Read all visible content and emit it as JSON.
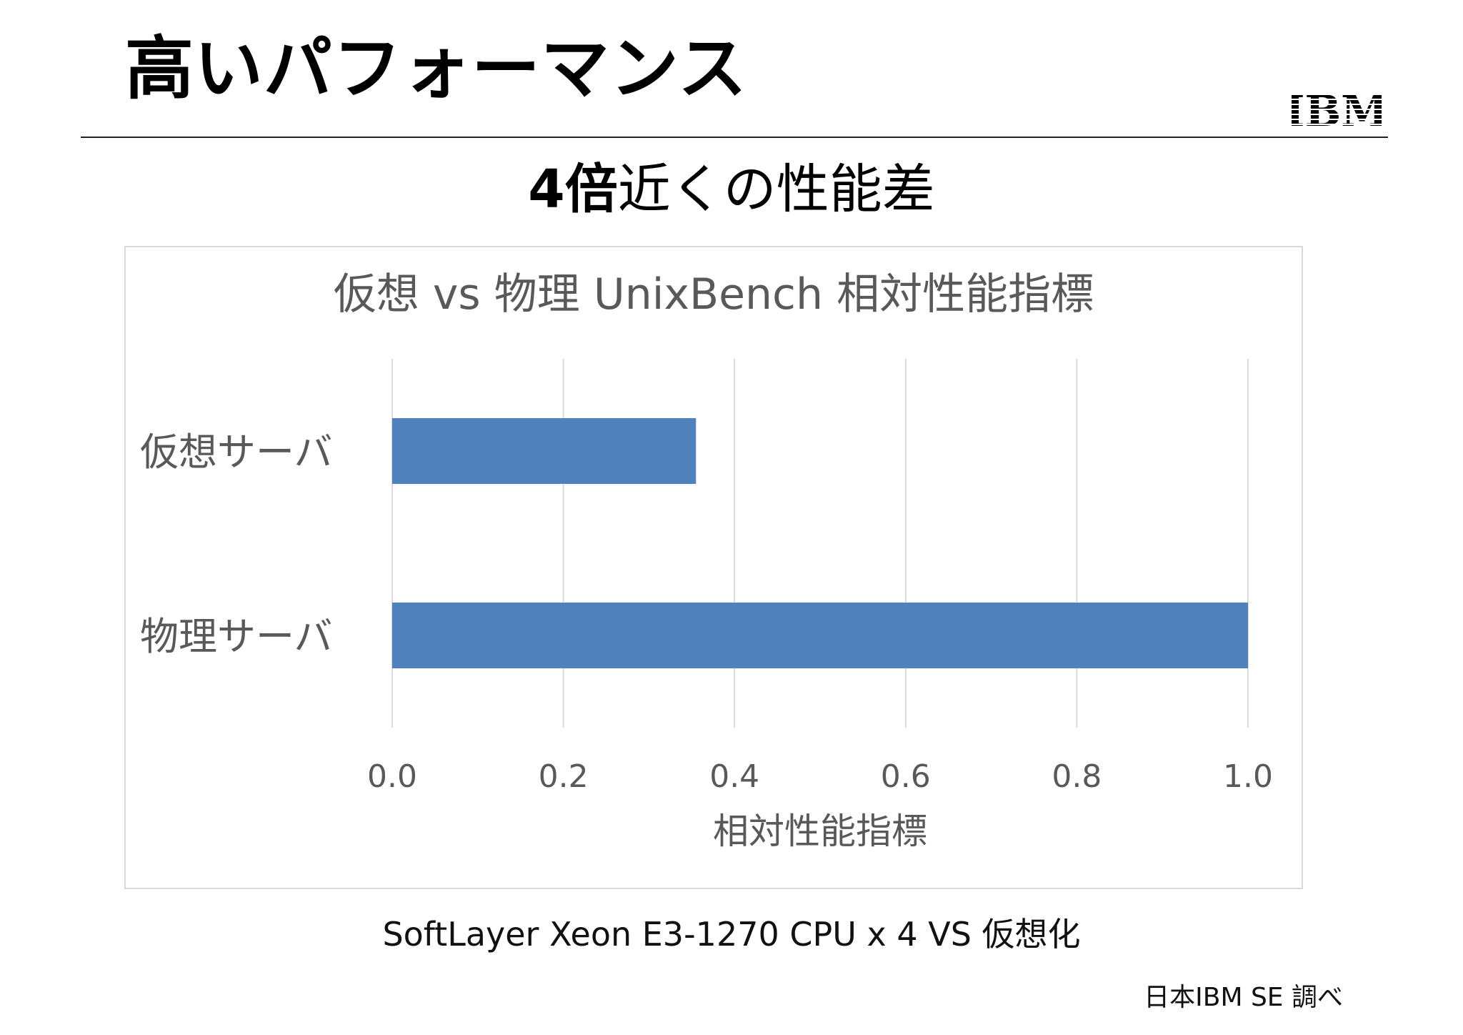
{
  "slide": {
    "title": "高いパフォーマンス",
    "headline_strong": "4倍",
    "headline_rest": "近くの性能差",
    "caption": "SoftLayer Xeon E3-1270 CPU x 4 VS 仮想化",
    "source_note": "日本IBM SE 調べ",
    "logo_text": "IBM"
  },
  "colors": {
    "bar": "#4f81bd",
    "grid": "#d9d9d9",
    "chart_text": "#595959"
  },
  "chart_data": {
    "type": "bar",
    "orientation": "horizontal",
    "title": "仮想 vs 物理 UnixBench 相対性能指標",
    "categories": [
      "仮想サーバ",
      "物理サーバ"
    ],
    "values": [
      0.355,
      1.0
    ],
    "xlabel": "相対性能指標",
    "ylabel": "",
    "xlim": [
      0.0,
      1.0
    ],
    "xticks": [
      "0.0",
      "0.2",
      "0.4",
      "0.6",
      "0.8",
      "1.0"
    ],
    "grid": true,
    "legend": "none"
  }
}
